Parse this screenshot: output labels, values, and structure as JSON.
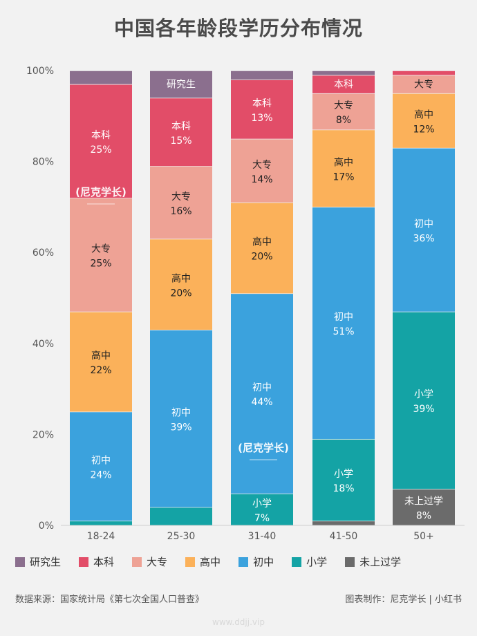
{
  "title": "中国各年龄段学历分布情况",
  "chart_data": {
    "type": "bar",
    "stacked": true,
    "title": "中国各年龄段学历分布情况",
    "categories": [
      "18-24",
      "25-30",
      "31-40",
      "41-50",
      "50+"
    ],
    "ylim": [
      0,
      100
    ],
    "yticks": [
      "0%",
      "20%",
      "40%",
      "60%",
      "80%",
      "100%"
    ],
    "grid": false,
    "legend_position": "bottom",
    "series": [
      {
        "name": "未上过学",
        "color": "#6b6b6b",
        "values": [
          0,
          0,
          0,
          1,
          8
        ],
        "labels": [
          "",
          "",
          "",
          "",
          "8%"
        ],
        "show_name": [
          false,
          false,
          false,
          false,
          true
        ]
      },
      {
        "name": "小学",
        "color": "#14a3a5",
        "values": [
          1,
          4,
          7,
          18,
          39
        ],
        "labels": [
          "",
          "",
          "7%",
          "18%",
          "39%"
        ],
        "show_name": [
          false,
          false,
          true,
          true,
          true
        ]
      },
      {
        "name": "初中",
        "color": "#3ba2dd",
        "values": [
          24,
          39,
          44,
          51,
          36
        ],
        "labels": [
          "24%",
          "39%",
          "44%",
          "51%",
          "36%"
        ],
        "show_name": [
          true,
          true,
          true,
          true,
          true
        ]
      },
      {
        "name": "高中",
        "color": "#fbb15a",
        "values": [
          22,
          20,
          20,
          17,
          12
        ],
        "labels": [
          "22%",
          "20%",
          "20%",
          "17%",
          "12%"
        ],
        "show_name": [
          true,
          true,
          true,
          true,
          true
        ]
      },
      {
        "name": "大专",
        "color": "#eea295",
        "values": [
          25,
          16,
          14,
          8,
          4
        ],
        "labels": [
          "25%",
          "16%",
          "14%",
          "8%",
          ""
        ],
        "show_name": [
          true,
          true,
          true,
          true,
          true
        ]
      },
      {
        "name": "本科",
        "color": "#e24d68",
        "values": [
          25,
          15,
          13,
          4,
          1
        ],
        "labels": [
          "25%",
          "15%",
          "13%",
          "",
          ""
        ],
        "show_name": [
          true,
          true,
          true,
          true,
          false
        ]
      },
      {
        "name": "研究生",
        "color": "#8b6f8e",
        "values": [
          3,
          6,
          2,
          1,
          0
        ],
        "labels": [
          "",
          "",
          "",
          "",
          ""
        ],
        "show_name": [
          false,
          true,
          false,
          false,
          false
        ]
      }
    ]
  },
  "legend": [
    {
      "name": "研究生",
      "color": "#8b6f8e"
    },
    {
      "name": "本科",
      "color": "#e24d68"
    },
    {
      "name": "大专",
      "color": "#eea295"
    },
    {
      "name": "高中",
      "color": "#fbb15a"
    },
    {
      "name": "初中",
      "color": "#3ba2dd"
    },
    {
      "name": "小学",
      "color": "#14a3a5"
    },
    {
      "name": "未上过学",
      "color": "#6b6b6b"
    }
  ],
  "footer": {
    "source": "数据来源：国家统计局《第七次全国人口普查》",
    "credit": "图表制作：尼克学长 | 小红书"
  },
  "logo_text": "尼克学长",
  "watermark": "www.ddjj.vip"
}
